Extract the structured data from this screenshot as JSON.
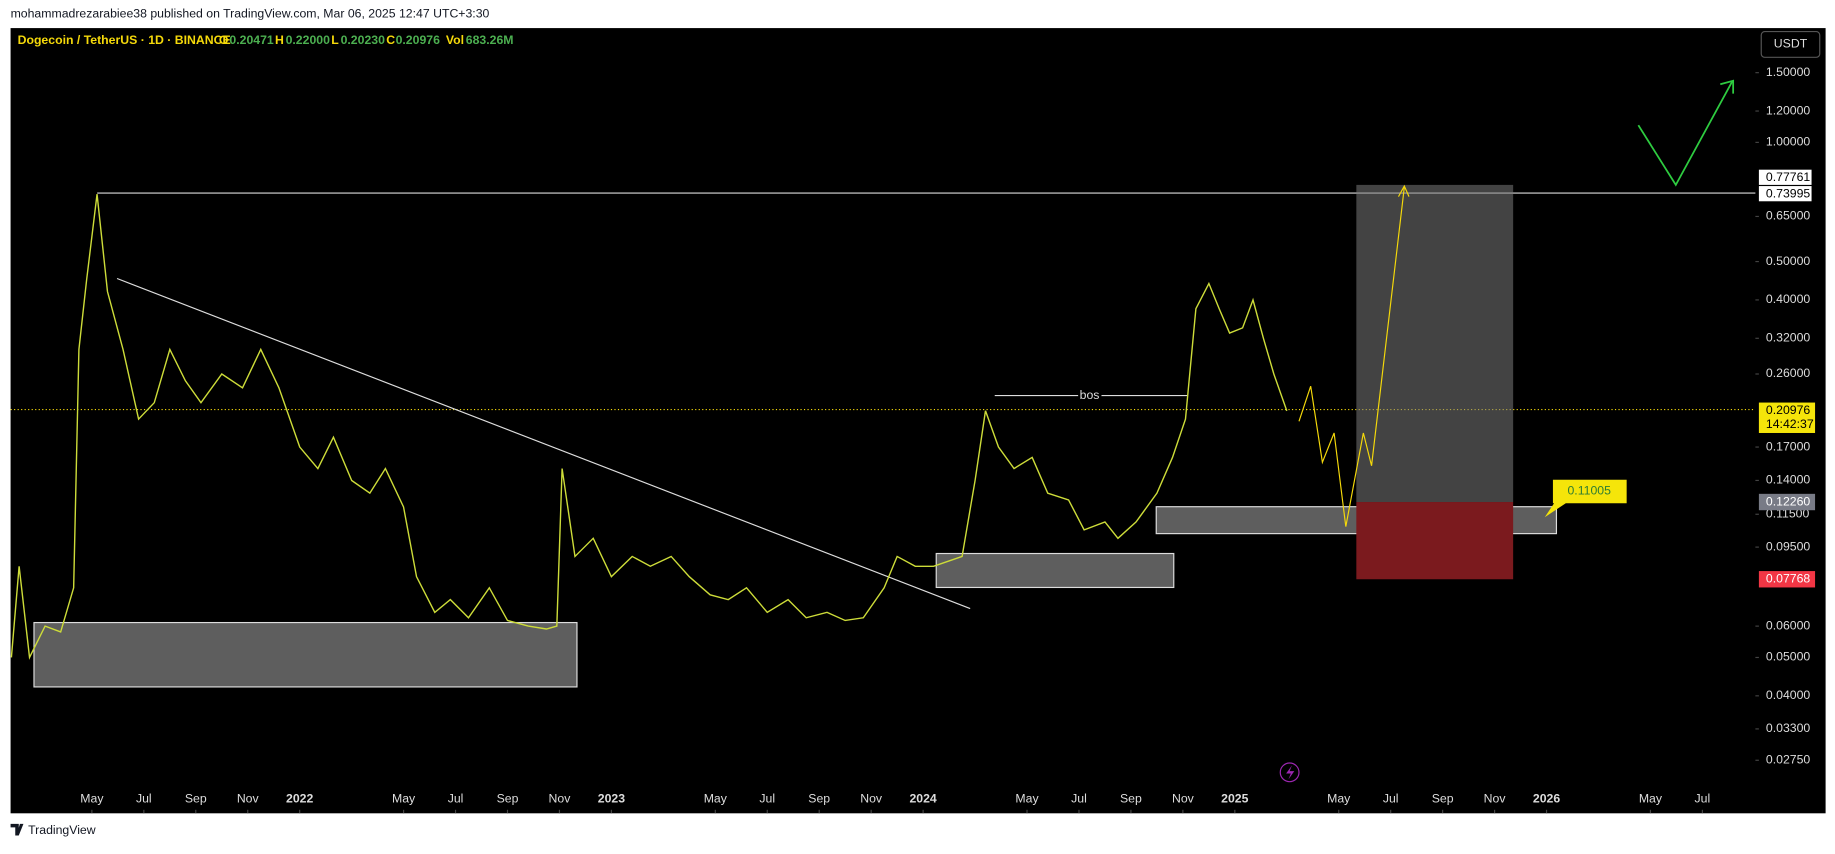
{
  "header": {
    "published": "mohammadrezarabiee38 published on TradingView.com, Mar 06, 2025 12:47 UTC+3:30",
    "footer": "TradingView"
  },
  "legend": {
    "symbol": "Dogecoin / TetherUS · 1D · BINANCE",
    "o_key": "O",
    "o": "0.20471",
    "h_key": "H",
    "h": "0.22000",
    "l_key": "L",
    "l": "0.20230",
    "c_key": "C",
    "c": "0.20976",
    "vol_key": "Vol",
    "vol": "683.26M"
  },
  "currency_button": "USDT",
  "price_labels": {
    "target_high": "0.77761",
    "target": "0.73995",
    "last": "0.20976",
    "countdown": "14:42:37",
    "entry": "0.12260",
    "stop": "0.07768",
    "callout": "0.11005",
    "bos": "bos"
  },
  "chart_data": {
    "type": "line",
    "log_y": true,
    "color": "#cddc39",
    "x": [
      0.9,
      1.2,
      1.6,
      2.2,
      2.8,
      3.3,
      3.5,
      3.8,
      4.2,
      4.6,
      5.2,
      5.8,
      6.4,
      7.0,
      7.6,
      8.2,
      9.0,
      9.8,
      10.5,
      11.2,
      12.0,
      12.7,
      13.3,
      14.0,
      14.7,
      15.3,
      16.0,
      16.5,
      17.2,
      17.8,
      18.5,
      19.3,
      20.0,
      20.8,
      21.5,
      21.9,
      22.1,
      22.6,
      23.3,
      24.0,
      24.8,
      25.5,
      26.3,
      27.0,
      27.8,
      28.5,
      29.2,
      30.0,
      30.8,
      31.5,
      32.3,
      33.0,
      33.7,
      34.5,
      35.0,
      35.7,
      36.4,
      37.5,
      38.0,
      38.4,
      38.9,
      39.5,
      40.2,
      40.8,
      41.6,
      42.2,
      43.0,
      43.5,
      44.2,
      45.0,
      45.6,
      46.1,
      46.5,
      47.0,
      47.4,
      47.8,
      48.3,
      48.7,
      49.1,
      49.5,
      50.0
    ],
    "values": [
      0.05,
      0.085,
      0.05,
      0.06,
      0.058,
      0.075,
      0.3,
      0.45,
      0.74,
      0.42,
      0.3,
      0.2,
      0.22,
      0.3,
      0.25,
      0.22,
      0.26,
      0.24,
      0.3,
      0.24,
      0.17,
      0.15,
      0.18,
      0.14,
      0.13,
      0.15,
      0.12,
      0.08,
      0.065,
      0.07,
      0.063,
      0.075,
      0.062,
      0.06,
      0.059,
      0.06,
      0.15,
      0.09,
      0.1,
      0.08,
      0.09,
      0.085,
      0.09,
      0.08,
      0.072,
      0.07,
      0.075,
      0.065,
      0.07,
      0.063,
      0.065,
      0.062,
      0.063,
      0.075,
      0.09,
      0.085,
      0.085,
      0.09,
      0.14,
      0.21,
      0.17,
      0.15,
      0.16,
      0.13,
      0.125,
      0.105,
      0.11,
      0.1,
      0.11,
      0.13,
      0.16,
      0.2,
      0.38,
      0.44,
      0.38,
      0.33,
      0.34,
      0.4,
      0.32,
      0.26,
      0.20976
    ],
    "xlim": [
      0.87,
      68.04
    ],
    "ylim": [
      0.0202,
      1.944
    ],
    "xticks": [
      {
        "value": 4,
        "label": "May"
      },
      {
        "value": 6,
        "label": "Jul"
      },
      {
        "value": 8,
        "label": "Sep"
      },
      {
        "value": 10,
        "label": "Nov"
      },
      {
        "value": 12,
        "label": "2022"
      },
      {
        "value": 16,
        "label": "May"
      },
      {
        "value": 18,
        "label": "Jul"
      },
      {
        "value": 20,
        "label": "Sep"
      },
      {
        "value": 22,
        "label": "Nov"
      },
      {
        "value": 24,
        "label": "2023"
      },
      {
        "value": 28,
        "label": "May"
      },
      {
        "value": 30,
        "label": "Jul"
      },
      {
        "value": 32,
        "label": "Sep"
      },
      {
        "value": 34,
        "label": "Nov"
      },
      {
        "value": 36,
        "label": "2024"
      },
      {
        "value": 40,
        "label": "May"
      },
      {
        "value": 42,
        "label": "Jul"
      },
      {
        "value": 44,
        "label": "Sep"
      },
      {
        "value": 46,
        "label": "Nov"
      },
      {
        "value": 48,
        "label": "2025"
      },
      {
        "value": 52,
        "label": "May"
      },
      {
        "value": 54,
        "label": "Jul"
      },
      {
        "value": 56,
        "label": "Sep"
      },
      {
        "value": 58,
        "label": "Nov"
      },
      {
        "value": 60,
        "label": "2026"
      },
      {
        "value": 64,
        "label": "May"
      },
      {
        "value": 66,
        "label": "Jul"
      }
    ],
    "yticks": [
      {
        "value": 1.5,
        "label": "1.50000"
      },
      {
        "value": 1.2,
        "label": "1.20000"
      },
      {
        "value": 1,
        "label": "1.00000"
      },
      {
        "value": 0.65,
        "label": "0.65000"
      },
      {
        "value": 0.5,
        "label": "0.50000"
      },
      {
        "value": 0.4,
        "label": "0.40000"
      },
      {
        "value": 0.32,
        "label": "0.32000"
      },
      {
        "value": 0.26,
        "label": "0.26000"
      },
      {
        "value": 0.17,
        "label": "0.17000"
      },
      {
        "value": 0.14,
        "label": "0.14000"
      },
      {
        "value": 0.115,
        "label": "0.11500"
      },
      {
        "value": 0.095,
        "label": "0.09500"
      },
      {
        "value": 0.06,
        "label": "0.06000"
      },
      {
        "value": 0.05,
        "label": "0.05000"
      },
      {
        "value": 0.04,
        "label": "0.04000"
      },
      {
        "value": 0.033,
        "label": "0.03300"
      },
      {
        "value": 0.0275,
        "label": "0.02750"
      }
    ]
  }
}
